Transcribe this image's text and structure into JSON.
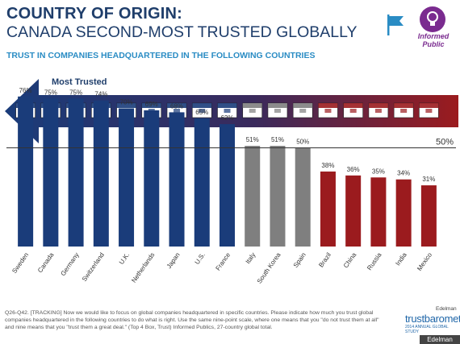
{
  "header": {
    "title_line1": "COUNTRY OF ORIGIN:",
    "title_line2": "CANADA SECOND-MOST TRUSTED GLOBALLY",
    "subtitle": "TRUST IN COMPANIES HEADQUARTERED IN THE FOLLOWING COUNTRIES"
  },
  "badge": {
    "label_line1": "Informed",
    "label_line2": "Public"
  },
  "arrow": {
    "label": "Most Trusted"
  },
  "colors": {
    "title": "#1f3e6b",
    "subtitle": "#2a8cc4",
    "high": "#1a3c7a",
    "mid": "#7f7f7f",
    "low": "#9b1b1e"
  },
  "chart_data": {
    "type": "bar",
    "categories": [
      "Sweden",
      "Canada",
      "Germany",
      "Switzerland",
      "U.K.",
      "Netherlands",
      "Japan",
      "U.S.",
      "France",
      "Italy",
      "South Korea",
      "Spain",
      "Brazil",
      "China",
      "Russia",
      "India",
      "Mexico"
    ],
    "values": [
      76,
      75,
      75,
      74,
      70,
      69,
      68,
      65,
      62,
      51,
      51,
      50,
      38,
      36,
      35,
      34,
      31
    ],
    "data_labels": [
      "76%",
      "75%",
      "75%",
      "74%",
      "70%",
      "69%",
      "68%",
      "65%",
      "62%",
      "51%",
      "51%",
      "50%",
      "38%",
      "36%",
      "35%",
      "34%",
      "31%"
    ],
    "groups": [
      "high",
      "high",
      "high",
      "high",
      "high",
      "high",
      "high",
      "high",
      "high",
      "mid",
      "mid",
      "mid",
      "low",
      "low",
      "low",
      "low",
      "low"
    ],
    "reference_line": {
      "value": 50,
      "label": "50%"
    },
    "ylim": [
      0,
      80
    ]
  },
  "footer": {
    "note": "Q26-Q42. [TRACKING] Now we would like to focus on global companies headquartered in specific countries. Please indicate how much you trust global companies headquartered in the following countries to do what is right. Use the same nine-point scale, where one means that you \"do not trust them at all\" and nine means that you \"trust them a great deal.\" (Top 4 Box, Trust) Informed Publics, 27-country global total.",
    "logo_small": "Edelman",
    "logo_main": "trustbarometer",
    "logo_sub": "2014 ANNUAL GLOBAL STUDY",
    "corner": "Edelman"
  }
}
